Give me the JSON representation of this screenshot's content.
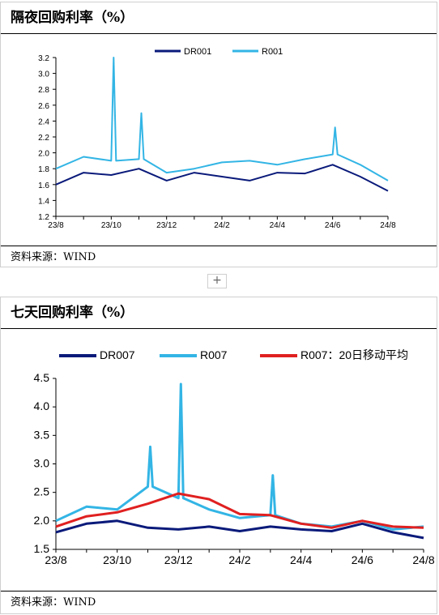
{
  "panels": [
    {
      "title": "隔夜回购利率（%）",
      "source": "资料来源：WIND"
    },
    {
      "title": "七天回购利率（%）",
      "source": "资料来源：WIND"
    }
  ],
  "expander_label": "+",
  "chart_data": [
    {
      "type": "line",
      "x": [
        "23/8",
        "23/9",
        "23/10",
        "23/11",
        "23/12",
        "24/1",
        "24/2",
        "24/3",
        "24/4",
        "24/5",
        "24/6",
        "24/7",
        "24/8"
      ],
      "xtick_labels": [
        "23/8",
        "23/10",
        "23/12",
        "24/2",
        "24/4",
        "24/6",
        "24/8"
      ],
      "ylim": [
        1.2,
        3.2
      ],
      "yticks": [
        1.2,
        1.4,
        1.6,
        1.8,
        2.0,
        2.2,
        2.4,
        2.6,
        2.8,
        3.0,
        3.2
      ],
      "ytick_labels": [
        "1.2",
        "1.4",
        "1.6",
        "1.8",
        "2.0",
        "2.2",
        "2.4",
        "2.6",
        "2.8",
        "3.0",
        "3.2"
      ],
      "legend_position": "top",
      "series": [
        {
          "name": "DR001",
          "color": "#0a1a7a",
          "values": [
            1.6,
            1.75,
            1.72,
            1.8,
            1.65,
            1.75,
            1.7,
            1.65,
            1.75,
            1.74,
            1.85,
            1.7,
            1.52
          ]
        },
        {
          "name": "R001",
          "color": "#33b5e5",
          "values": [
            1.8,
            1.95,
            1.9,
            1.92,
            1.75,
            1.8,
            1.88,
            1.9,
            1.85,
            1.92,
            1.98,
            1.85,
            1.65
          ]
        }
      ],
      "peaks": [
        {
          "series": "R001",
          "x": "23/10",
          "value": 3.2
        },
        {
          "series": "R001",
          "x": "23/11",
          "value": 2.5
        },
        {
          "series": "R001",
          "x": "24/6",
          "value": 2.32
        }
      ]
    },
    {
      "type": "line",
      "x": [
        "23/8",
        "23/9",
        "23/10",
        "23/11",
        "23/12",
        "24/1",
        "24/2",
        "24/3",
        "24/4",
        "24/5",
        "24/6",
        "24/7",
        "24/8"
      ],
      "xtick_labels": [
        "23/8",
        "23/10",
        "23/12",
        "24/2",
        "24/4",
        "24/6",
        "24/8"
      ],
      "ylim": [
        1.5,
        4.5
      ],
      "yticks": [
        1.5,
        2.0,
        2.5,
        3.0,
        3.5,
        4.0,
        4.5
      ],
      "ytick_labels": [
        "1.5",
        "2.0",
        "2.5",
        "3.0",
        "3.5",
        "4.0",
        "4.5"
      ],
      "legend_position": "top",
      "series": [
        {
          "name": "DR007",
          "color": "#0a1a7a",
          "values": [
            1.8,
            1.95,
            2.0,
            1.88,
            1.85,
            1.9,
            1.82,
            1.9,
            1.85,
            1.82,
            1.95,
            1.8,
            1.7
          ]
        },
        {
          "name": "R007",
          "color": "#33b5e5",
          "values": [
            2.0,
            2.25,
            2.2,
            2.6,
            2.4,
            2.2,
            2.05,
            2.1,
            1.95,
            1.9,
            2.0,
            1.85,
            1.9
          ]
        },
        {
          "name": "R007：20日移动平均",
          "color": "#e02020",
          "values": [
            1.9,
            2.08,
            2.15,
            2.3,
            2.48,
            2.38,
            2.12,
            2.1,
            1.95,
            1.88,
            2.0,
            1.9,
            1.88
          ]
        }
      ],
      "peaks": [
        {
          "series": "R007",
          "x": "23/12",
          "value": 4.4
        },
        {
          "series": "R007",
          "x": "23/11",
          "value": 3.3
        },
        {
          "series": "R007",
          "x": "24/3",
          "value": 2.8
        }
      ]
    }
  ]
}
